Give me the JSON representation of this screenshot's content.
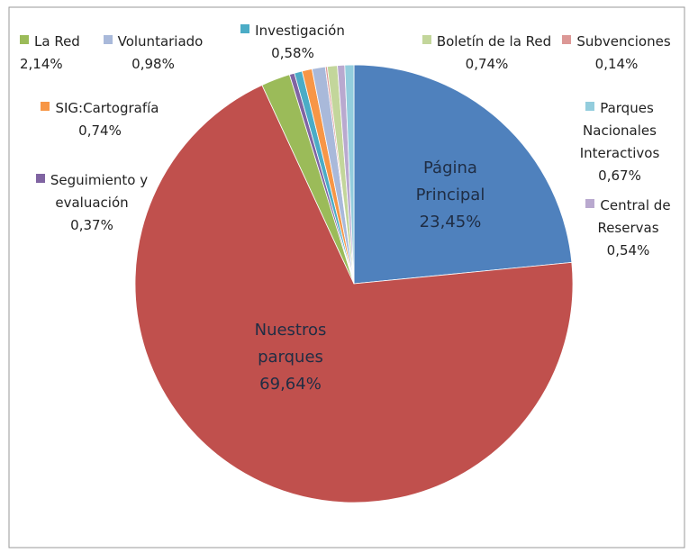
{
  "chart_data": {
    "type": "pie",
    "categories": [
      "Página Principal",
      "Nuestros parques",
      "La Red",
      "Seguimiento y evaluación",
      "Investigación",
      "SIG:Cartografía",
      "Voluntariado",
      "Subvenciones",
      "Boletín de la Red",
      "Central de Reservas",
      "Parques Nacionales Interactivos"
    ],
    "values": [
      23.45,
      69.64,
      2.14,
      0.37,
      0.58,
      0.74,
      0.98,
      0.14,
      0.74,
      0.54,
      0.67
    ],
    "value_labels": [
      "23,45%",
      "69,64%",
      "2,14%",
      "0,37%",
      "0,58%",
      "0,74%",
      "0,98%",
      "0,14%",
      "0,74%",
      "0,54%",
      "0,67%"
    ],
    "colors": [
      "#4f81bd",
      "#c0504d",
      "#9bbb59",
      "#8064a2",
      "#4bacc6",
      "#f79646",
      "#a9b9da",
      "#dc9896",
      "#c3d69b",
      "#b9a9cf",
      "#93cddd"
    ]
  }
}
